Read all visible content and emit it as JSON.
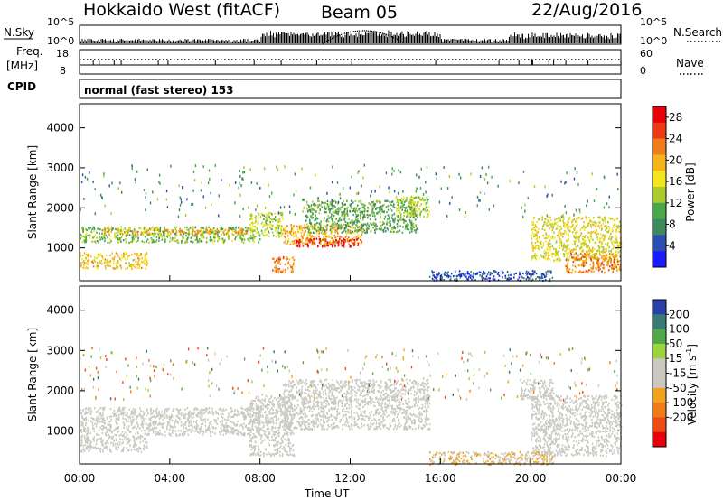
{
  "header": {
    "title_left": "Hokkaido West (fitACF)",
    "title_center": "Beam 05",
    "title_right": "22/Aug/2016"
  },
  "strip": {
    "nsky_label": "N.Sky",
    "nsky_tick_top": "10^5",
    "nsky_tick_bottom": "10^0",
    "nsearch_label": "N.Search",
    "nsearch_tick_top": "10^5",
    "nsearch_tick_bottom": "10^0",
    "freq_label": "Freq.",
    "freq_unit": "[MHz]",
    "freq_tick_top": "18",
    "freq_tick_bottom": "8",
    "nave_label": "Nave",
    "nave_tick_top": "60",
    "nave_tick_bottom": "0",
    "cpid_label": "CPID",
    "cpid_text": "normal (fast stereo) 153"
  },
  "colors": {
    "power": [
      "#1a1aff",
      "#2a4fb0",
      "#3f8a5c",
      "#49a94a",
      "#a9cc2a",
      "#f3e61d",
      "#f5b41a",
      "#f07d18",
      "#ee3a12",
      "#e8000a"
    ],
    "velocity": [
      "#2a3fa8",
      "#3a7a76",
      "#4fa84a",
      "#9cd43a",
      "#c9c9c0",
      "#c9c9c0",
      "#f2a31e",
      "#f07c18",
      "#ee4c14",
      "#e8000a"
    ]
  },
  "chart_data": [
    {
      "type": "heatmap",
      "panel": "power",
      "xlabel": "Time UT",
      "ylabel": "Slant Range [km]",
      "x_ticks": [
        "00:00",
        "04:00",
        "08:00",
        "12:00",
        "16:00",
        "20:00",
        "00:00"
      ],
      "x_range_hours": [
        0,
        24
      ],
      "y_ticks": [
        1000,
        2000,
        3000,
        4000
      ],
      "ylim": [
        180,
        4600
      ],
      "colorbar": {
        "label": "Power [dB]",
        "ticks": [
          4,
          8,
          12,
          16,
          20,
          24,
          28
        ],
        "range": [
          0,
          30
        ]
      },
      "regions": [
        {
          "t": [
            0.0,
            8.0
          ],
          "r": [
            1150,
            1550
          ],
          "value": 12
        },
        {
          "t": [
            1.0,
            7.5
          ],
          "r": [
            1350,
            1500
          ],
          "value": 20
        },
        {
          "t": [
            0.0,
            3.0
          ],
          "r": [
            500,
            900
          ],
          "value": 18
        },
        {
          "t": [
            7.5,
            9.0
          ],
          "r": [
            1300,
            1900
          ],
          "value": 14
        },
        {
          "t": [
            8.5,
            9.5
          ],
          "r": [
            400,
            800
          ],
          "value": 22
        },
        {
          "t": [
            9.0,
            12.5
          ],
          "r": [
            1100,
            1600
          ],
          "value": 20
        },
        {
          "t": [
            9.5,
            12.5
          ],
          "r": [
            1050,
            1250
          ],
          "value": 28
        },
        {
          "t": [
            10.0,
            15.0
          ],
          "r": [
            1400,
            2200
          ],
          "value": 10
        },
        {
          "t": [
            14.0,
            15.5
          ],
          "r": [
            1800,
            2300
          ],
          "value": 14
        },
        {
          "t": [
            15.5,
            21.0
          ],
          "r": [
            200,
            450
          ],
          "value": 5
        },
        {
          "t": [
            20.0,
            24.0
          ],
          "r": [
            700,
            1800
          ],
          "value": 16
        },
        {
          "t": [
            21.5,
            24.0
          ],
          "r": [
            400,
            900
          ],
          "value": 22
        }
      ]
    },
    {
      "type": "heatmap",
      "panel": "velocity",
      "xlabel": "Time UT",
      "ylabel": "Slant Range [km]",
      "x_ticks": [
        "00:00",
        "04:00",
        "08:00",
        "12:00",
        "16:00",
        "20:00",
        "00:00"
      ],
      "x_range_hours": [
        0,
        24
      ],
      "y_ticks": [
        1000,
        2000,
        3000,
        4000
      ],
      "ylim": [
        180,
        4600
      ],
      "colorbar": {
        "label": "Velocity [m s^-1]",
        "ticks": [
          200,
          100,
          50,
          15,
          -15,
          -50,
          -100,
          -200
        ],
        "range": [
          -250,
          250
        ]
      },
      "regions": [
        {
          "t": [
            0.0,
            8.0
          ],
          "r": [
            900,
            1600
          ],
          "value": 0
        },
        {
          "t": [
            0.0,
            3.0
          ],
          "r": [
            500,
            900
          ],
          "value": 0
        },
        {
          "t": [
            7.5,
            9.5
          ],
          "r": [
            400,
            1900
          ],
          "value": 0
        },
        {
          "t": [
            9.0,
            15.5
          ],
          "r": [
            1050,
            2300
          ],
          "value": 0
        },
        {
          "t": [
            15.5,
            21.0
          ],
          "r": [
            180,
            500
          ],
          "value": -50
        },
        {
          "t": [
            20.0,
            24.0
          ],
          "r": [
            400,
            1900
          ],
          "value": 0
        },
        {
          "t": [
            19.5,
            21.0
          ],
          "r": [
            1800,
            2300
          ],
          "value": 30
        }
      ]
    }
  ]
}
